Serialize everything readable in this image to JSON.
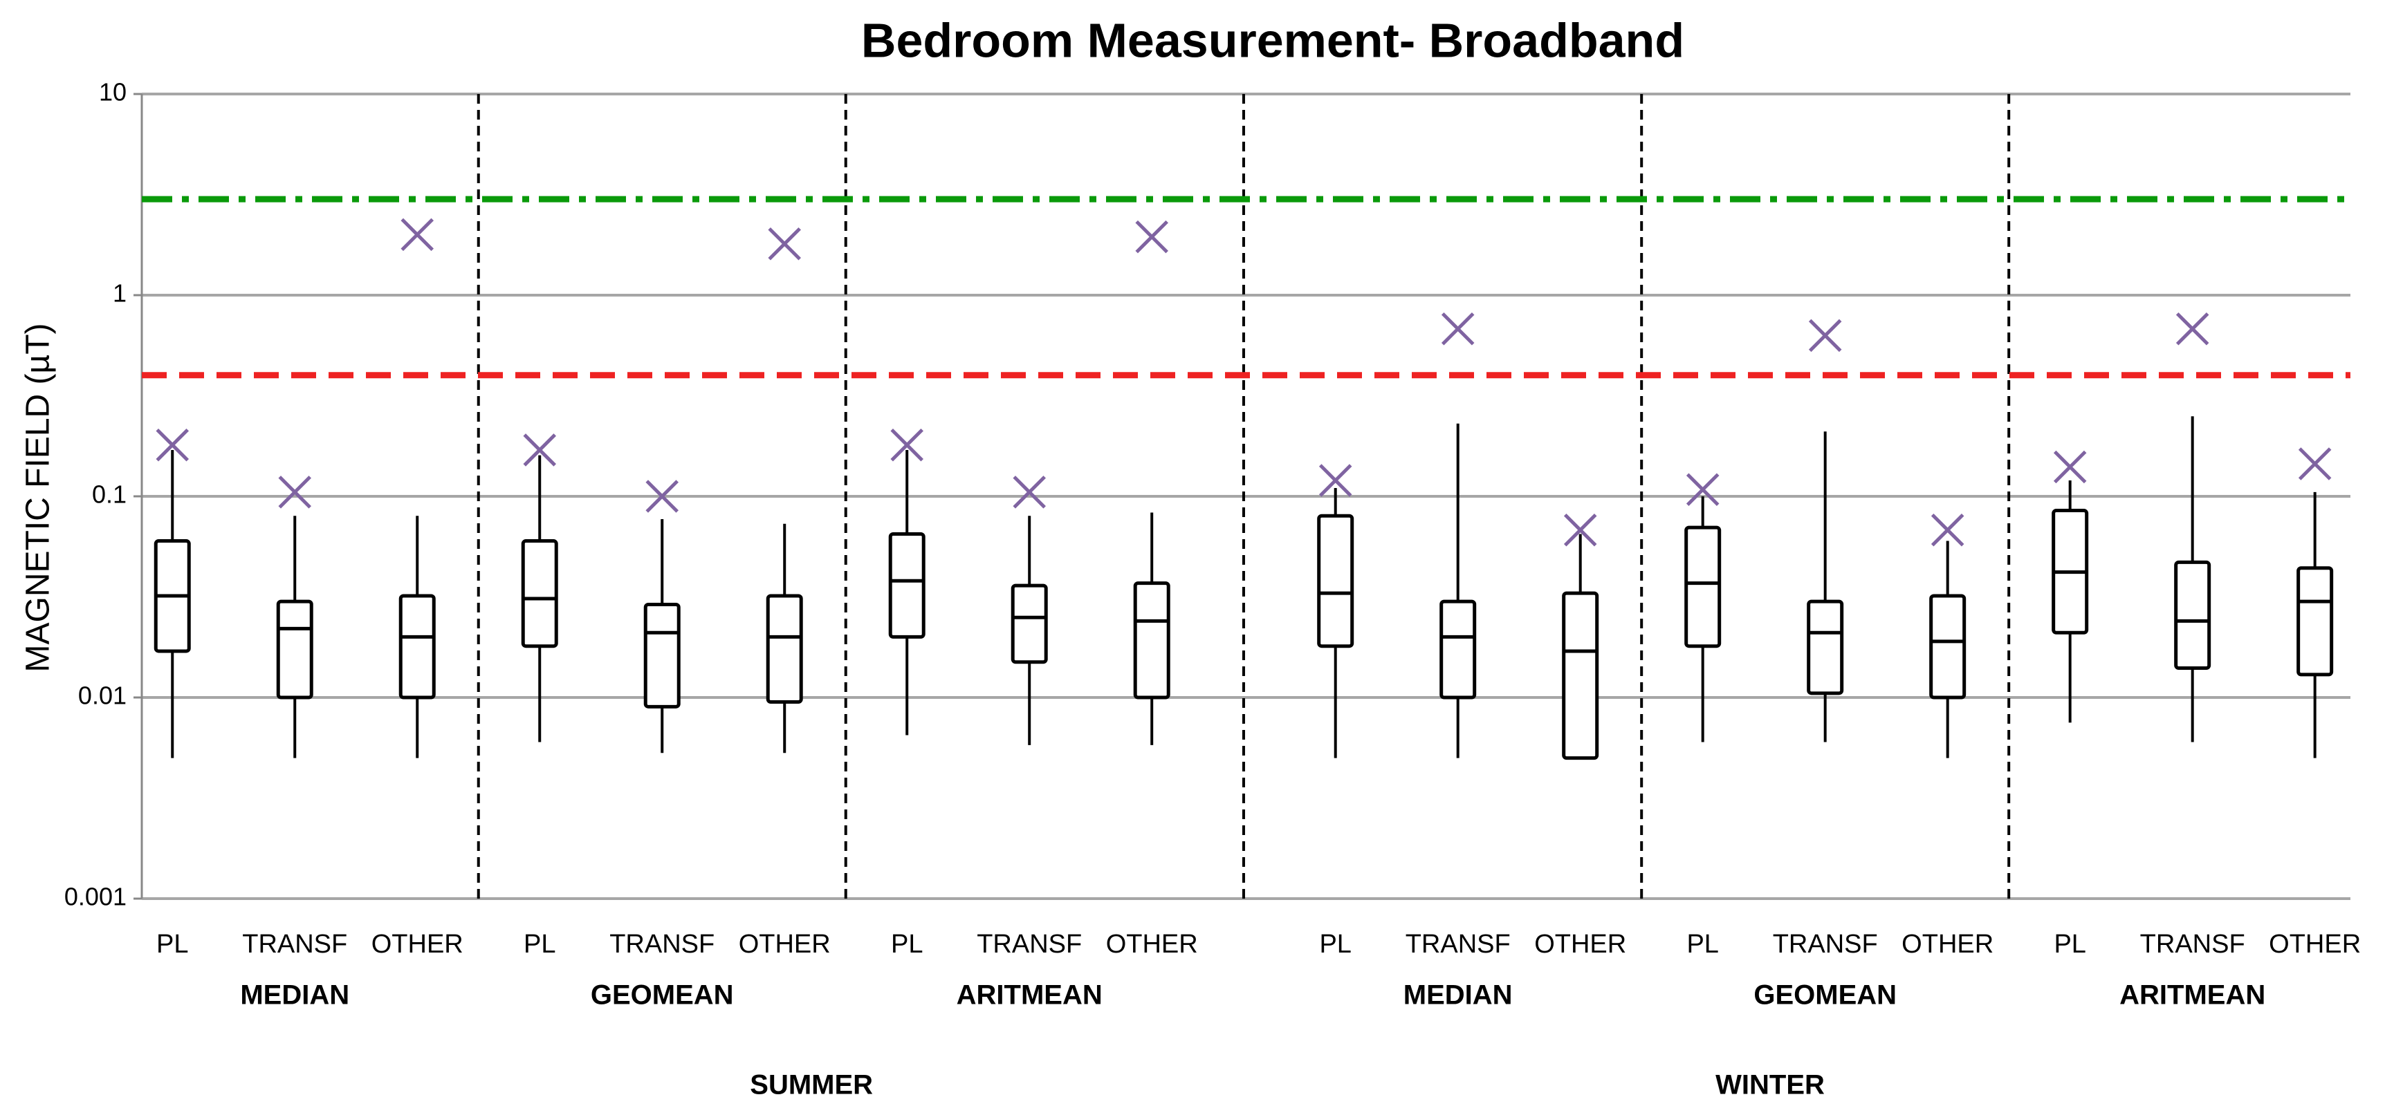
{
  "chart_data": {
    "type": "box",
    "title": "Bedroom Measurement- Broadband",
    "y_label": "MAGNETIC FIELD (µT)",
    "log_scale": true,
    "grid": true,
    "ylim": [
      0.001,
      10
    ],
    "yticks": [
      0.001,
      0.01,
      0.1,
      1,
      10
    ],
    "categories": [
      "PL",
      "TRANSF",
      "OTHER",
      "PL",
      "TRANSF",
      "OTHER",
      "PL",
      "TRANSF",
      "OTHER",
      "PL",
      "TRANSF",
      "OTHER",
      "PL",
      "TRANSF",
      "OTHER",
      "PL",
      "TRANSF",
      "OTHER"
    ],
    "groups": [
      "MEDIAN",
      "GEOMEAN",
      "ARITMEAN",
      "MEDIAN",
      "GEOMEAN",
      "ARITMEAN"
    ],
    "seasons": [
      "SUMMER",
      "WINTER"
    ],
    "box_color": "#000000",
    "whisker_low": [
      0.005,
      0.005,
      0.005,
      0.006,
      0.0053,
      0.0053,
      0.0065,
      0.0058,
      0.0058,
      0.005,
      0.005,
      0.005,
      0.006,
      0.006,
      0.005,
      0.0075,
      0.006,
      0.005
    ],
    "q1": [
      0.017,
      0.01,
      0.01,
      0.018,
      0.009,
      0.0095,
      0.02,
      0.015,
      0.01,
      0.018,
      0.01,
      0.005,
      0.018,
      0.0105,
      0.01,
      0.021,
      0.014,
      0.013
    ],
    "median": [
      0.032,
      0.022,
      0.02,
      0.031,
      0.021,
      0.02,
      0.038,
      0.025,
      0.024,
      0.033,
      0.02,
      0.017,
      0.037,
      0.021,
      0.019,
      0.042,
      0.024,
      0.03
    ],
    "q3": [
      0.06,
      0.03,
      0.032,
      0.06,
      0.029,
      0.032,
      0.065,
      0.036,
      0.037,
      0.08,
      0.03,
      0.033,
      0.07,
      0.03,
      0.032,
      0.085,
      0.047,
      0.044
    ],
    "whisker_high": [
      0.17,
      0.08,
      0.08,
      0.16,
      0.077,
      0.073,
      0.17,
      0.08,
      0.083,
      0.11,
      0.23,
      0.065,
      0.1,
      0.21,
      0.06,
      0.12,
      0.25,
      0.105
    ],
    "markers": [
      0.18,
      0.105,
      2.0,
      0.17,
      0.1,
      1.8,
      0.18,
      0.105,
      1.95,
      0.12,
      0.68,
      0.068,
      0.108,
      0.63,
      0.068,
      0.14,
      0.68,
      0.145
    ],
    "marker_color": "#7f63a1",
    "reference_lines": [
      {
        "value": 3,
        "color": "#0a9a0a",
        "style": "dash-dot"
      },
      {
        "value": 0.4,
        "color": "#ee2222",
        "style": "dashed"
      }
    ]
  }
}
